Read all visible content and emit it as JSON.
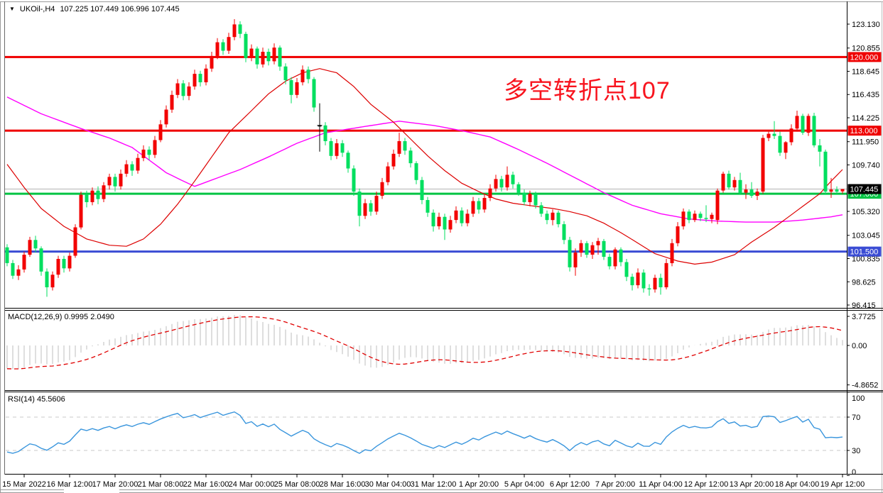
{
  "window": {
    "collapse_icon": "▼",
    "symbol_title": "UKOil-,H4",
    "ohlc_title": "107.225 107.449 106.996 107.445"
  },
  "annotation": {
    "text": "多空转折点107",
    "color": "#f8141e"
  },
  "macd_panel": {
    "label": "MACD(12,26,9)",
    "value_main": "0.9995",
    "value_signal": "2.0490",
    "axis_labels": [
      "3.7725",
      "0.00",
      "-4.8652"
    ]
  },
  "rsi_panel": {
    "label": "RSI(14)",
    "value": "45.5606",
    "axis_labels": [
      "100",
      "70",
      "30",
      "0"
    ]
  },
  "chart_data": {
    "type": "candlestick",
    "symbol": "UKOil-",
    "timeframe": "H4",
    "current_candle": {
      "open": 107.225,
      "high": 107.449,
      "low": 106.996,
      "close": 107.445
    },
    "price_ticks": [
      {
        "v": 123.13,
        "t": "123.130"
      },
      {
        "v": 120.855,
        "t": "120.855"
      },
      {
        "v": 118.645,
        "t": "118.645"
      },
      {
        "v": 116.435,
        "t": "116.435"
      },
      {
        "v": 114.225,
        "t": "114.225"
      },
      {
        "v": 111.95,
        "t": "111.950"
      },
      {
        "v": 109.74,
        "t": "109.740"
      },
      {
        "v": 105.32,
        "t": "105.320"
      },
      {
        "v": 103.045,
        "t": "103.045"
      },
      {
        "v": 100.835,
        "t": "100.835"
      },
      {
        "v": 98.625,
        "t": "98.625"
      },
      {
        "v": 96.415,
        "t": "96.415"
      }
    ],
    "levels": [
      {
        "price": 120.0,
        "label": "120.000",
        "color": "#ef0000"
      },
      {
        "price": 113.0,
        "label": "113.000",
        "color": "#ef0000"
      },
      {
        "price": 107.0,
        "label": "107.000",
        "color": "#00c443"
      },
      {
        "price": 101.5,
        "label": "101.500",
        "color": "#3a4cd4"
      }
    ],
    "current_price": {
      "value": 107.445,
      "label": "107.445",
      "line_color": "#b4b4b4",
      "box_color": "#000000"
    },
    "candle_colors": {
      "up": "#f20000",
      "down": "#00df5f",
      "doji": "#000000",
      "wick_width": 1
    },
    "doji_indices": [
      55
    ],
    "time_labels": [
      "15 Mar 2022",
      "16 Mar 12:00",
      "17 Mar 20:00",
      "21 Mar 08:00",
      "22 Mar 16:00",
      "24 Mar 00:00",
      "25 Mar 08:00",
      "28 Mar 16:00",
      "30 Mar 04:00",
      "31 Mar 12:00",
      "1 Apr 20:00",
      "5 Apr 04:00",
      "6 Apr 12:00",
      "7 Apr 20:00",
      "11 Apr 04:00",
      "12 Apr 12:00",
      "13 Apr 20:00",
      "18 Apr 04:00",
      "19 Apr 12:00"
    ],
    "time_tick_indices": [
      3,
      11,
      19,
      27,
      35,
      43,
      51,
      59,
      67,
      75,
      83,
      91,
      99,
      107,
      115,
      123,
      131,
      139,
      147
    ],
    "candles": [
      [
        101.9,
        102.2,
        100.1,
        100.4
      ],
      [
        100.4,
        100.7,
        98.9,
        99.2
      ],
      [
        99.2,
        100.2,
        98.8,
        99.8
      ],
      [
        99.8,
        101.5,
        99.5,
        101.2
      ],
      [
        101.2,
        102.9,
        101.0,
        102.6
      ],
      [
        102.6,
        103.0,
        101.4,
        101.8
      ],
      [
        101.8,
        102.0,
        99.2,
        99.6
      ],
      [
        99.6,
        99.9,
        97.2,
        98.1
      ],
      [
        98.1,
        99.6,
        97.8,
        99.3
      ],
      [
        99.3,
        101.1,
        99.0,
        100.8
      ],
      [
        100.8,
        101.1,
        99.5,
        99.9
      ],
      [
        99.9,
        101.4,
        99.6,
        101.1
      ],
      [
        101.1,
        104.1,
        100.9,
        103.8
      ],
      [
        103.8,
        107.2,
        103.6,
        106.9
      ],
      [
        106.9,
        107.3,
        105.7,
        106.2
      ],
      [
        106.2,
        107.6,
        105.9,
        107.3
      ],
      [
        107.3,
        107.7,
        106.0,
        106.5
      ],
      [
        106.5,
        108.1,
        106.2,
        107.8
      ],
      [
        107.8,
        108.9,
        107.4,
        108.6
      ],
      [
        108.6,
        108.9,
        107.2,
        107.7
      ],
      [
        107.7,
        109.3,
        107.4,
        108.9
      ],
      [
        108.9,
        110.2,
        108.6,
        109.8
      ],
      [
        109.8,
        110.1,
        108.7,
        109.2
      ],
      [
        109.2,
        110.8,
        108.9,
        110.4
      ],
      [
        110.4,
        111.6,
        110.1,
        111.2
      ],
      [
        111.2,
        111.5,
        110.2,
        110.7
      ],
      [
        110.7,
        112.5,
        110.4,
        112.1
      ],
      [
        112.1,
        114.0,
        111.9,
        113.6
      ],
      [
        113.6,
        115.4,
        113.3,
        115.0
      ],
      [
        115.0,
        116.8,
        114.7,
        116.4
      ],
      [
        116.4,
        117.9,
        116.1,
        117.5
      ],
      [
        117.5,
        117.8,
        115.9,
        116.3
      ],
      [
        116.3,
        117.6,
        115.9,
        117.2
      ],
      [
        117.2,
        118.8,
        116.9,
        118.4
      ],
      [
        118.4,
        118.7,
        117.2,
        117.6
      ],
      [
        117.6,
        119.3,
        117.3,
        118.9
      ],
      [
        118.9,
        120.5,
        118.6,
        120.1
      ],
      [
        120.1,
        121.8,
        119.8,
        121.4
      ],
      [
        121.4,
        121.7,
        120.2,
        120.6
      ],
      [
        120.6,
        122.3,
        120.3,
        121.9
      ],
      [
        121.9,
        123.6,
        121.6,
        123.1
      ],
      [
        123.1,
        123.4,
        121.8,
        122.2
      ],
      [
        122.2,
        122.4,
        119.5,
        119.9
      ],
      [
        119.9,
        121.2,
        119.6,
        120.8
      ],
      [
        120.8,
        121.0,
        118.9,
        119.3
      ],
      [
        119.3,
        120.9,
        119.0,
        120.5
      ],
      [
        120.5,
        120.8,
        119.2,
        119.6
      ],
      [
        119.6,
        121.3,
        119.3,
        120.9
      ],
      [
        120.9,
        121.1,
        118.7,
        119.1
      ],
      [
        119.1,
        119.4,
        117.4,
        117.8
      ],
      [
        117.8,
        118.1,
        115.6,
        116.4
      ],
      [
        116.4,
        118.0,
        116.1,
        117.6
      ],
      [
        117.6,
        119.2,
        117.3,
        118.8
      ],
      [
        118.8,
        119.1,
        117.5,
        117.9
      ],
      [
        117.9,
        118.1,
        114.8,
        115.2
      ],
      [
        113.4,
        115.6,
        111.0,
        113.5
      ],
      [
        113.5,
        113.8,
        111.6,
        112.0
      ],
      [
        112.0,
        112.3,
        110.2,
        110.6
      ],
      [
        110.6,
        112.2,
        110.3,
        111.8
      ],
      [
        111.8,
        112.1,
        110.5,
        110.9
      ],
      [
        110.9,
        111.1,
        109.0,
        109.4
      ],
      [
        109.4,
        109.7,
        106.8,
        107.2
      ],
      [
        107.2,
        107.5,
        103.9,
        104.9
      ],
      [
        104.9,
        106.5,
        104.6,
        106.1
      ],
      [
        106.1,
        106.4,
        104.9,
        105.3
      ],
      [
        105.3,
        107.2,
        105.0,
        106.8
      ],
      [
        106.8,
        108.5,
        106.5,
        108.1
      ],
      [
        108.1,
        110.0,
        107.8,
        109.6
      ],
      [
        109.6,
        111.2,
        109.3,
        110.8
      ],
      [
        110.8,
        112.8,
        110.5,
        112.0
      ],
      [
        112.0,
        112.3,
        110.7,
        111.1
      ],
      [
        111.1,
        111.4,
        109.5,
        109.9
      ],
      [
        109.9,
        110.1,
        107.9,
        108.3
      ],
      [
        108.3,
        108.6,
        106.0,
        106.4
      ],
      [
        106.4,
        106.7,
        104.8,
        105.2
      ],
      [
        105.2,
        105.5,
        103.4,
        103.9
      ],
      [
        103.9,
        105.2,
        103.6,
        104.8
      ],
      [
        104.8,
        105.1,
        102.6,
        103.6
      ],
      [
        103.6,
        104.9,
        103.3,
        104.5
      ],
      [
        104.5,
        105.8,
        104.2,
        105.4
      ],
      [
        105.4,
        105.7,
        103.9,
        104.2
      ],
      [
        104.2,
        105.5,
        103.9,
        105.1
      ],
      [
        105.1,
        106.7,
        104.8,
        106.3
      ],
      [
        106.3,
        106.6,
        105.1,
        105.5
      ],
      [
        105.5,
        107.0,
        105.2,
        106.6
      ],
      [
        106.6,
        107.9,
        106.3,
        107.5
      ],
      [
        107.5,
        108.8,
        107.2,
        108.4
      ],
      [
        108.4,
        108.7,
        107.2,
        107.6
      ],
      [
        107.6,
        109.6,
        107.3,
        108.8
      ],
      [
        108.8,
        109.1,
        107.5,
        107.9
      ],
      [
        107.9,
        108.1,
        106.8,
        107.1
      ],
      [
        107.1,
        107.4,
        105.9,
        106.2
      ],
      [
        106.2,
        107.3,
        105.8,
        107.0
      ],
      [
        107.0,
        107.2,
        105.6,
        105.9
      ],
      [
        105.9,
        106.2,
        104.8,
        105.1
      ],
      [
        105.1,
        105.4,
        104.1,
        104.5
      ],
      [
        104.5,
        105.5,
        104.0,
        105.2
      ],
      [
        105.2,
        105.4,
        103.8,
        104.1
      ],
      [
        104.1,
        104.4,
        102.2,
        102.6
      ],
      [
        102.6,
        102.9,
        99.6,
        100.0
      ],
      [
        100.0,
        101.8,
        99.2,
        101.4
      ],
      [
        101.4,
        102.6,
        101.0,
        102.3
      ],
      [
        102.3,
        102.5,
        100.9,
        101.2
      ],
      [
        101.2,
        102.4,
        100.8,
        102.1
      ],
      [
        102.1,
        102.8,
        101.2,
        102.5
      ],
      [
        102.5,
        102.7,
        100.7,
        101.0
      ],
      [
        101.0,
        101.3,
        99.8,
        100.1
      ],
      [
        100.1,
        101.9,
        99.8,
        101.7
      ],
      [
        101.7,
        101.9,
        100.1,
        100.5
      ],
      [
        100.5,
        100.8,
        98.7,
        99.1
      ],
      [
        99.1,
        99.4,
        97.8,
        98.3
      ],
      [
        98.3,
        99.9,
        98.0,
        99.5
      ],
      [
        99.5,
        99.8,
        97.6,
        98.0
      ],
      [
        98.0,
        98.4,
        97.3,
        97.9
      ],
      [
        97.9,
        99.3,
        97.6,
        99.0
      ],
      [
        99.0,
        99.4,
        97.4,
        98.1
      ],
      [
        98.1,
        100.8,
        97.9,
        100.4
      ],
      [
        100.4,
        102.7,
        100.1,
        102.3
      ],
      [
        102.3,
        104.3,
        102.0,
        103.9
      ],
      [
        103.9,
        105.6,
        103.6,
        105.3
      ],
      [
        105.3,
        105.5,
        104.2,
        104.5
      ],
      [
        104.5,
        105.4,
        104.3,
        105.1
      ],
      [
        105.1,
        105.3,
        104.4,
        104.7
      ],
      [
        104.7,
        105.9,
        104.3,
        104.6
      ],
      [
        104.6,
        105.2,
        104.2,
        105.0
      ],
      [
        104.5,
        107.5,
        104.1,
        107.3
      ],
      [
        107.3,
        109.1,
        107.1,
        108.9
      ],
      [
        108.9,
        109.2,
        107.4,
        107.6
      ],
      [
        107.6,
        108.6,
        107.3,
        108.3
      ],
      [
        108.3,
        109.0,
        106.9,
        107.1
      ],
      [
        107.1,
        107.9,
        106.5,
        107.4
      ],
      [
        107.4,
        108.1,
        106.6,
        106.8
      ],
      [
        106.8,
        107.5,
        106.4,
        107.2
      ],
      [
        107.2,
        112.6,
        107.0,
        112.3
      ],
      [
        112.3,
        112.9,
        112.0,
        112.7
      ],
      [
        112.7,
        113.9,
        112.2,
        112.5
      ],
      [
        112.5,
        112.9,
        110.6,
        110.9
      ],
      [
        110.9,
        112.0,
        110.3,
        111.9
      ],
      [
        111.9,
        113.6,
        111.6,
        113.2
      ],
      [
        113.2,
        114.9,
        112.9,
        114.4
      ],
      [
        114.4,
        114.6,
        112.6,
        112.8
      ],
      [
        112.8,
        114.6,
        112.5,
        114.4
      ],
      [
        114.4,
        114.7,
        111.4,
        111.6
      ],
      [
        111.6,
        112.2,
        109.6,
        111.0
      ],
      [
        111.0,
        111.2,
        106.9,
        107.2
      ],
      [
        107.2,
        108.5,
        106.6,
        107.4
      ],
      [
        107.4,
        107.7,
        107.0,
        107.2
      ],
      [
        107.225,
        107.449,
        106.996,
        107.445
      ]
    ],
    "ma_fast": {
      "name": "fast-ma",
      "color": "#dd0000",
      "anchors": [
        [
          0,
          109.8
        ],
        [
          3,
          107.6
        ],
        [
          6,
          105.6
        ],
        [
          10,
          103.9
        ],
        [
          14,
          102.7
        ],
        [
          18,
          102.1
        ],
        [
          21,
          102.0
        ],
        [
          24,
          102.7
        ],
        [
          27,
          104.1
        ],
        [
          30,
          106.0
        ],
        [
          33,
          108.2
        ],
        [
          36,
          110.5
        ],
        [
          39,
          112.8
        ],
        [
          43,
          114.9
        ],
        [
          46,
          116.5
        ],
        [
          49,
          117.7
        ],
        [
          52,
          118.5
        ],
        [
          55,
          118.9
        ],
        [
          58,
          118.5
        ],
        [
          61,
          117.2
        ],
        [
          64,
          115.5
        ],
        [
          68,
          113.8
        ],
        [
          71,
          112.2
        ],
        [
          74,
          110.6
        ],
        [
          77,
          109.2
        ],
        [
          80,
          108.0
        ],
        [
          83,
          107.2
        ],
        [
          86,
          106.5
        ],
        [
          89,
          106.1
        ],
        [
          93,
          105.8
        ],
        [
          96,
          105.6
        ],
        [
          99,
          105.3
        ],
        [
          102,
          104.9
        ],
        [
          105,
          104.2
        ],
        [
          108,
          103.3
        ],
        [
          111,
          102.3
        ],
        [
          114,
          101.3
        ],
        [
          118,
          100.6
        ],
        [
          121,
          100.3
        ],
        [
          124,
          100.5
        ],
        [
          128,
          101.2
        ],
        [
          131,
          102.4
        ],
        [
          135,
          103.8
        ],
        [
          139,
          105.4
        ],
        [
          143,
          107.0
        ],
        [
          145,
          108.2
        ],
        [
          147,
          109.3
        ]
      ]
    },
    "ma_slow": {
      "name": "slow-ma",
      "color": "#ff00ff",
      "anchors": [
        [
          0,
          116.2
        ],
        [
          6,
          114.6
        ],
        [
          13,
          113.2
        ],
        [
          18,
          112.3
        ],
        [
          22,
          111.4
        ],
        [
          28,
          109.0
        ],
        [
          31,
          108.2
        ],
        [
          33,
          107.7
        ],
        [
          36,
          108.3
        ],
        [
          41,
          109.3
        ],
        [
          46,
          110.5
        ],
        [
          51,
          111.8
        ],
        [
          56,
          112.8
        ],
        [
          63,
          113.4
        ],
        [
          69,
          113.9
        ],
        [
          75,
          113.5
        ],
        [
          80,
          113.0
        ],
        [
          85,
          112.4
        ],
        [
          90,
          111.2
        ],
        [
          95,
          109.9
        ],
        [
          100,
          108.5
        ],
        [
          105,
          107.1
        ],
        [
          110,
          105.9
        ],
        [
          115,
          105.1
        ],
        [
          120,
          104.6
        ],
        [
          125,
          104.4
        ],
        [
          130,
          104.3
        ],
        [
          135,
          104.3
        ],
        [
          140,
          104.5
        ],
        [
          145,
          104.8
        ],
        [
          147,
          105.0
        ]
      ]
    },
    "macd": {
      "fast": 12,
      "slow": 26,
      "signal": 9,
      "hist_color": "#c9c9c9",
      "signal_color": "#e00000",
      "axis_max": 3.7725,
      "axis_min": -4.8652,
      "seed": {
        "ema_fast_offset": 2.5,
        "ema_slow_offset": 5.5
      }
    },
    "rsi": {
      "period": 14,
      "color": "#3a96dd",
      "levels": [
        70,
        30
      ],
      "level_color": "#c8c8c8",
      "seed": {
        "avg_gain": 0.45,
        "avg_loss": 1.15
      }
    }
  }
}
